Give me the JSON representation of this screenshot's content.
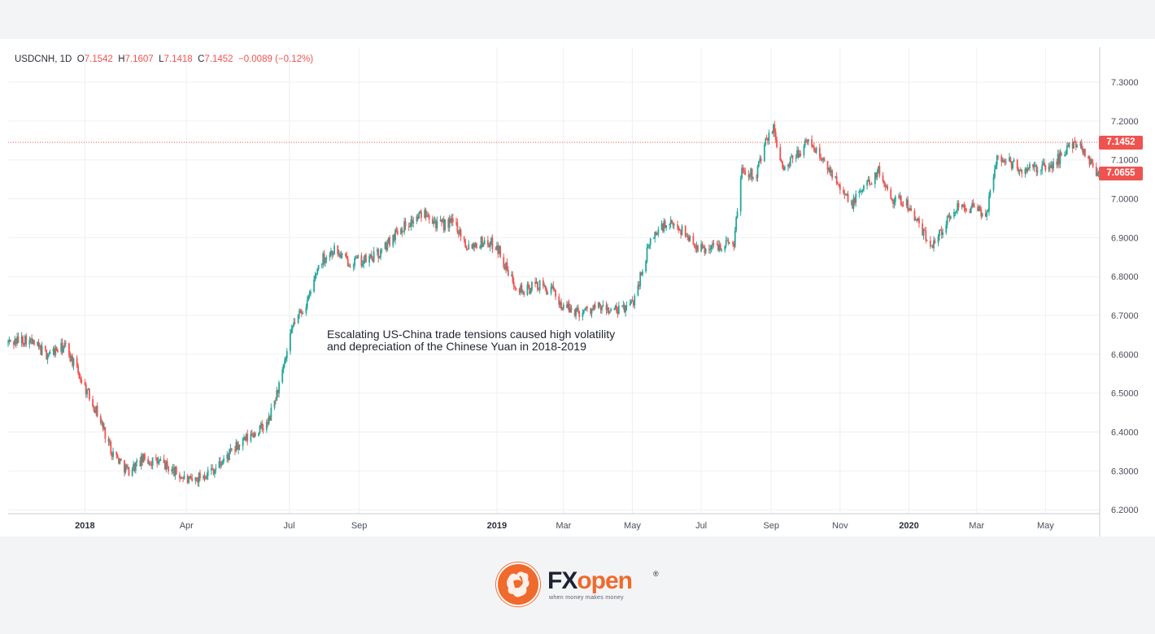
{
  "chart_data": {
    "type": "candlestick",
    "symbol": "USDCNH",
    "interval": "1D",
    "ohlc_readout": {
      "open_label": "O",
      "open": "7.1542",
      "high_label": "H",
      "high": "7.1607",
      "low_label": "L",
      "low": "7.1418",
      "close_label": "C",
      "close": "7.1452",
      "change": "−0.0089 (−0.12%)"
    },
    "ylim": [
      6.19,
      7.39
    ],
    "xlim": [
      "2017-10-25",
      "2020-06-18"
    ],
    "y_ticks": [
      "7.3000",
      "7.2000",
      "7.1000",
      "7.0000",
      "6.9000",
      "6.8000",
      "6.7000",
      "6.6000",
      "6.5000",
      "6.4000",
      "6.3000",
      "6.2000"
    ],
    "x_ticks": [
      {
        "label": "2018",
        "date": "2018-01-01",
        "year": true
      },
      {
        "label": "Apr",
        "date": "2018-04-01",
        "year": false
      },
      {
        "label": "Jul",
        "date": "2018-07-01",
        "year": false
      },
      {
        "label": "Sep",
        "date": "2018-09-01",
        "year": false
      },
      {
        "label": "2019",
        "date": "2019-01-01",
        "year": true
      },
      {
        "label": "Mar",
        "date": "2019-03-01",
        "year": false
      },
      {
        "label": "May",
        "date": "2019-05-01",
        "year": false
      },
      {
        "label": "Jul",
        "date": "2019-07-01",
        "year": false
      },
      {
        "label": "Sep",
        "date": "2019-09-01",
        "year": false
      },
      {
        "label": "Nov",
        "date": "2019-11-01",
        "year": false
      },
      {
        "label": "2020",
        "date": "2020-01-01",
        "year": true
      },
      {
        "label": "Mar",
        "date": "2020-03-01",
        "year": false
      },
      {
        "label": "May",
        "date": "2020-05-01",
        "year": false
      }
    ],
    "price_tags": [
      {
        "value": 7.1452,
        "label": "7.1452"
      },
      {
        "value": 7.0655,
        "label": "7.0655"
      }
    ],
    "last_price_line": 7.1452,
    "close_path": [
      [
        "2017-10-25",
        6.63
      ],
      [
        "2017-11-10",
        6.64
      ],
      [
        "2017-11-28",
        6.6
      ],
      [
        "2017-12-15",
        6.62
      ],
      [
        "2017-12-28",
        6.54
      ],
      [
        "2018-01-12",
        6.45
      ],
      [
        "2018-01-25",
        6.35
      ],
      [
        "2018-02-08",
        6.3
      ],
      [
        "2018-02-22",
        6.33
      ],
      [
        "2018-03-10",
        6.32
      ],
      [
        "2018-03-25",
        6.29
      ],
      [
        "2018-04-05",
        6.27
      ],
      [
        "2018-04-15",
        6.29
      ],
      [
        "2018-04-28",
        6.31
      ],
      [
        "2018-05-15",
        6.36
      ],
      [
        "2018-06-01",
        6.4
      ],
      [
        "2018-06-12",
        6.42
      ],
      [
        "2018-06-25",
        6.55
      ],
      [
        "2018-07-05",
        6.68
      ],
      [
        "2018-07-18",
        6.74
      ],
      [
        "2018-07-28",
        6.84
      ],
      [
        "2018-08-10",
        6.87
      ],
      [
        "2018-08-20",
        6.84
      ],
      [
        "2018-09-05",
        6.84
      ],
      [
        "2018-09-20",
        6.86
      ],
      [
        "2018-10-05",
        6.92
      ],
      [
        "2018-10-22",
        6.95
      ],
      [
        "2018-10-31",
        6.97
      ],
      [
        "2018-11-10",
        6.93
      ],
      [
        "2018-11-25",
        6.94
      ],
      [
        "2018-12-05",
        6.88
      ],
      [
        "2018-12-20",
        6.89
      ],
      [
        "2019-01-01",
        6.88
      ],
      [
        "2019-01-12",
        6.8
      ],
      [
        "2019-01-25",
        6.76
      ],
      [
        "2019-02-05",
        6.78
      ],
      [
        "2019-02-20",
        6.76
      ],
      [
        "2019-03-01",
        6.72
      ],
      [
        "2019-03-15",
        6.71
      ],
      [
        "2019-04-01",
        6.72
      ],
      [
        "2019-04-18",
        6.71
      ],
      [
        "2019-05-01",
        6.73
      ],
      [
        "2019-05-08",
        6.8
      ],
      [
        "2019-05-18",
        6.9
      ],
      [
        "2019-05-28",
        6.93
      ],
      [
        "2019-06-10",
        6.93
      ],
      [
        "2019-06-20",
        6.9
      ],
      [
        "2019-07-01",
        6.87
      ],
      [
        "2019-07-15",
        6.88
      ],
      [
        "2019-07-30",
        6.89
      ],
      [
        "2019-08-06",
        7.08
      ],
      [
        "2019-08-18",
        7.06
      ],
      [
        "2019-08-28",
        7.15
      ],
      [
        "2019-09-03",
        7.18
      ],
      [
        "2019-09-12",
        7.07
      ],
      [
        "2019-09-25",
        7.12
      ],
      [
        "2019-10-05",
        7.15
      ],
      [
        "2019-10-18",
        7.09
      ],
      [
        "2019-10-30",
        7.05
      ],
      [
        "2019-11-10",
        6.98
      ],
      [
        "2019-11-22",
        7.03
      ],
      [
        "2019-12-05",
        7.07
      ],
      [
        "2019-12-18",
        7.0
      ],
      [
        "2019-12-30",
        6.99
      ],
      [
        "2020-01-10",
        6.93
      ],
      [
        "2020-01-20",
        6.88
      ],
      [
        "2020-01-30",
        6.92
      ],
      [
        "2020-02-15",
        6.99
      ],
      [
        "2020-03-01",
        6.97
      ],
      [
        "2020-03-10",
        6.96
      ],
      [
        "2020-03-18",
        7.1
      ],
      [
        "2020-03-28",
        7.1
      ],
      [
        "2020-04-10",
        7.07
      ],
      [
        "2020-04-22",
        7.08
      ],
      [
        "2020-05-05",
        7.08
      ],
      [
        "2020-05-15",
        7.11
      ],
      [
        "2020-05-27",
        7.15
      ],
      [
        "2020-06-05",
        7.12
      ],
      [
        "2020-06-15",
        7.07
      ]
    ]
  },
  "annotation": "Escalating US-China trade tensions caused high volatility and depreciation of the Chinese Yuan in 2018-2019",
  "brand": {
    "name_dark": "FX",
    "name_accent": "open",
    "registered": "®",
    "tagline": "when money makes money",
    "accent_color": "#ef6a2c"
  },
  "colors": {
    "up": "#26a69a",
    "down": "#ef5350",
    "price_line": "#ef5350"
  }
}
